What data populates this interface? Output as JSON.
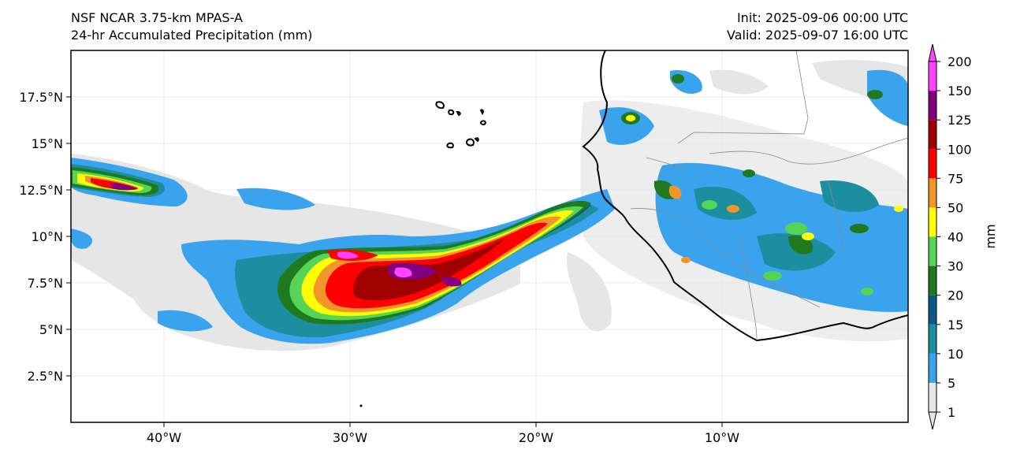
{
  "header": {
    "model": "NSF NCAR 3.75-km MPAS-A",
    "field": "24-hr Accumulated Precipitation (mm)",
    "init": "Init: 2025-09-06 00:00 UTC",
    "valid": "Valid: 2025-09-07 16:00 UTC"
  },
  "map": {
    "lon_range": [
      -45,
      0
    ],
    "lat_range": [
      0,
      20
    ],
    "lon_ticks": [
      {
        "value": -40,
        "label": "40°W"
      },
      {
        "value": -30,
        "label": "30°W"
      },
      {
        "value": -20,
        "label": "20°W"
      },
      {
        "value": -10,
        "label": "10°W"
      }
    ],
    "lat_ticks": [
      {
        "value": 2.5,
        "label": "2.5°N"
      },
      {
        "value": 5,
        "label": "5°N"
      },
      {
        "value": 7.5,
        "label": "7.5°N"
      },
      {
        "value": 10,
        "label": "10°N"
      },
      {
        "value": 12.5,
        "label": "12.5°N"
      },
      {
        "value": 15,
        "label": "15°N"
      },
      {
        "value": 17.5,
        "label": "17.5°N"
      }
    ],
    "grid": true
  },
  "colorbar": {
    "label": "mm",
    "levels": [
      "1",
      "5",
      "10",
      "15",
      "20",
      "30",
      "40",
      "50",
      "75",
      "100",
      "125",
      "150",
      "200"
    ],
    "colors": [
      "#e6e6e6",
      "#3aa3ee",
      "#1b8ea0",
      "#075a88",
      "#1f7a1f",
      "#55d455",
      "#ffff00",
      "#f0962a",
      "#ff0000",
      "#a00000",
      "#800080",
      "#ff44ff"
    ]
  }
}
